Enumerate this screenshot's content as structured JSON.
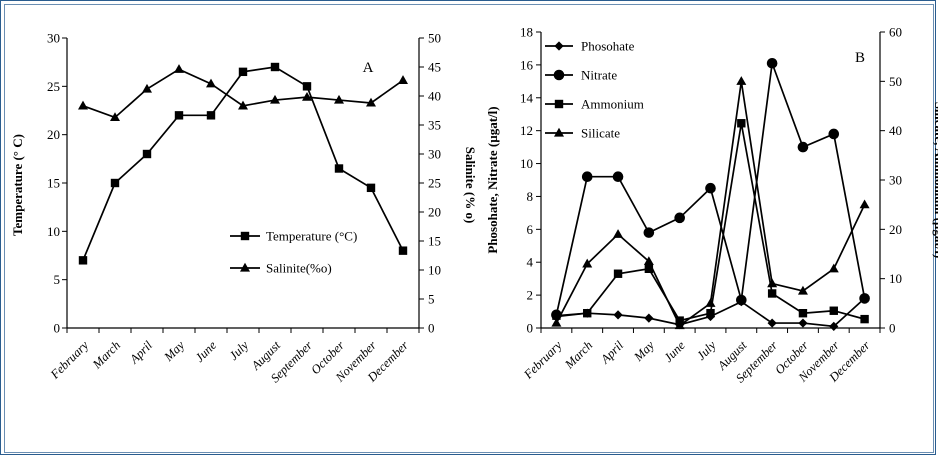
{
  "chart_data": [
    {
      "type": "line",
      "panel_label": "A",
      "categories": [
        "February",
        "March",
        "April",
        "May",
        "June",
        "July",
        "August",
        "September",
        "October",
        "November",
        "December"
      ],
      "yleft": {
        "label": "Temperature (° C)",
        "ylim": [
          0,
          30
        ],
        "ticks": [
          0,
          5,
          10,
          15,
          20,
          25,
          30
        ]
      },
      "yright": {
        "label": "Salinite (% o)",
        "ylim": [
          0,
          50
        ],
        "ticks": [
          0,
          5,
          10,
          15,
          20,
          25,
          30,
          35,
          40,
          45,
          50
        ]
      },
      "series": [
        {
          "name": "Temperature (°C)",
          "axis": "left",
          "marker": "square",
          "values": [
            7,
            15,
            18,
            22,
            22,
            26.5,
            27,
            25,
            16.5,
            14.5,
            8
          ]
        },
        {
          "name": "Salinite(%o)",
          "axis": "right",
          "marker": "triangle",
          "values": [
            38.3,
            36.3,
            41.2,
            44.6,
            42.1,
            38.3,
            39.3,
            39.8,
            39.3,
            38.8,
            42.7
          ]
        }
      ],
      "legend": "center-right",
      "grid": false
    },
    {
      "type": "line",
      "panel_label": "B",
      "categories": [
        "February",
        "March",
        "April",
        "May",
        "June",
        "July",
        "August",
        "September",
        "October",
        "November",
        "December"
      ],
      "yleft": {
        "label": "Phosohate, Nitrate (µgat/l)",
        "ylim": [
          0,
          18
        ],
        "ticks": [
          0,
          2,
          4,
          6,
          8,
          10,
          12,
          14,
          16,
          18
        ]
      },
      "yright": {
        "label": "Silicate, Ammonium (µgat/l)",
        "ylim": [
          0,
          60
        ],
        "ticks": [
          0,
          10,
          20,
          30,
          40,
          50,
          60
        ]
      },
      "series": [
        {
          "name": "Phosohate",
          "axis": "left",
          "marker": "diamond",
          "values": [
            0.7,
            0.9,
            0.8,
            0.6,
            0.2,
            0.7,
            1.6,
            0.3,
            0.3,
            0.1,
            1.8
          ]
        },
        {
          "name": "Nitrate",
          "axis": "left",
          "marker": "circle",
          "values": [
            0.8,
            9.2,
            9.2,
            5.8,
            6.7,
            8.5,
            1.7,
            16.1,
            11.0,
            11.8,
            1.8
          ]
        },
        {
          "name": "Ammonium",
          "axis": "right",
          "marker": "square",
          "values": [
            2.5,
            3.0,
            11.0,
            12.0,
            1.5,
            3.0,
            41.5,
            7.0,
            3.0,
            3.5,
            1.8
          ]
        },
        {
          "name": "Silicate",
          "axis": "right",
          "marker": "triangle",
          "values": [
            1.0,
            13.0,
            19.0,
            13.5,
            0.5,
            5.0,
            50.0,
            9.0,
            7.5,
            12.0,
            25.0
          ]
        }
      ],
      "legend": "top-left",
      "grid": false
    }
  ]
}
